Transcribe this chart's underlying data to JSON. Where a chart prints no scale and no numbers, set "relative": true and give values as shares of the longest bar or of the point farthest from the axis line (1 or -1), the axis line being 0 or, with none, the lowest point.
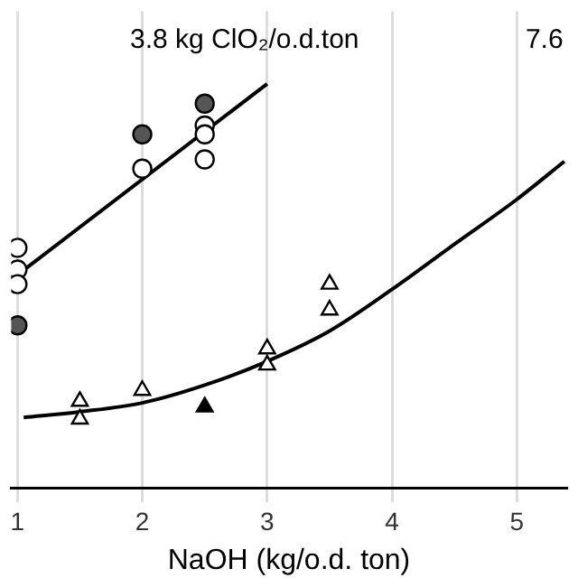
{
  "chart_data": {
    "type": "scatter",
    "relative": true,
    "xlabel": "NaOH (kg/o.d. ton)",
    "xlim": [
      0.95,
      5.4
    ],
    "xticks": [
      1,
      2,
      3,
      4,
      5
    ],
    "grid": "x",
    "legend": false,
    "annotations": [
      "3.8 kg ClO₂/o.d.ton",
      "7.6"
    ],
    "series": [
      {
        "marker": "circle",
        "color": "#ffffff",
        "x": [
          1,
          1,
          1,
          2,
          2.5,
          2.5,
          2.5
        ],
        "values": [
          0.594,
          0.54,
          0.504,
          0.79,
          0.897,
          0.875,
          0.813
        ]
      },
      {
        "marker": "circle",
        "color": "#555555",
        "x": [
          1,
          2,
          2.5
        ],
        "values": [
          0.402,
          0.875,
          0.951
        ]
      },
      {
        "type": "line",
        "marker": "none",
        "color": "#000000",
        "x": [
          1,
          3
        ],
        "values": [
          0.527,
          1.0
        ]
      },
      {
        "marker": "triangle",
        "color": "#ffffff",
        "x": [
          1.5,
          1.5,
          2,
          3,
          3,
          3.5,
          3.5
        ],
        "values": [
          0.214,
          0.17,
          0.241,
          0.344,
          0.304,
          0.504,
          0.44
        ]
      },
      {
        "marker": "triangle",
        "color": "#000000",
        "x": [
          2.5
        ],
        "values": [
          0.2
        ]
      },
      {
        "type": "line",
        "marker": "none",
        "color": "#000000",
        "x": [
          1.05,
          1.5,
          2,
          2.5,
          3,
          3.5,
          4,
          4.5,
          5,
          5.38
        ],
        "values": [
          0.174,
          0.188,
          0.21,
          0.254,
          0.313,
          0.388,
          0.491,
          0.603,
          0.714,
          0.808
        ]
      }
    ]
  }
}
